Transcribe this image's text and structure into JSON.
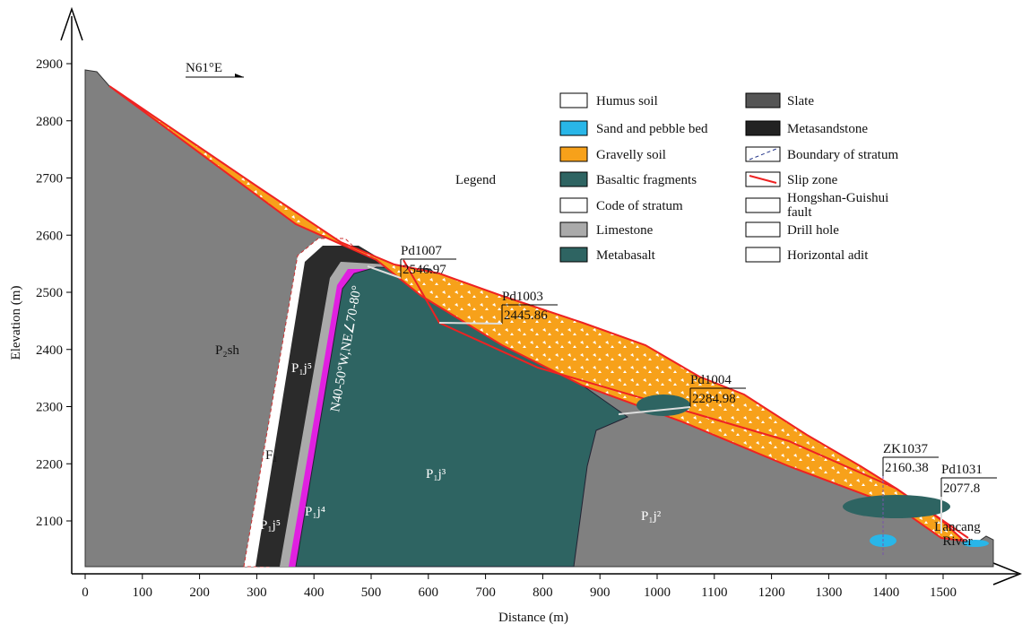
{
  "direction": "N61°E",
  "axes": {
    "x_label": "Distance (m)",
    "y_label": "Elevation (m)",
    "xticks": [
      0,
      100,
      200,
      300,
      400,
      500,
      600,
      700,
      800,
      900,
      1000,
      1100,
      1200,
      1300,
      1400,
      1500
    ],
    "yticks": [
      2100,
      2200,
      2300,
      2400,
      2500,
      2600,
      2700,
      2800,
      2900
    ]
  },
  "legend": {
    "title": "Legend",
    "left": [
      "Humus soil",
      "Sand and pebble bed",
      "Gravelly soil",
      "Basaltic fragments",
      "Code of stratum",
      "Limestone",
      "Metabasalt"
    ],
    "right": [
      "Slate",
      "Metasandstone",
      "Boundary of stratum",
      "Slip zone",
      [
        "Hongshan-Guishui",
        "fault"
      ],
      "Drill hole",
      "Horizontal adit"
    ]
  },
  "drill_points": [
    {
      "name": "Pd1007",
      "elevation": "2546.97"
    },
    {
      "name": "Pd1003",
      "elevation": "2445.86"
    },
    {
      "name": "Pd1004",
      "elevation": "2284.98"
    },
    {
      "name": "ZK1037",
      "elevation": "2160.38"
    },
    {
      "name": "Pd1031",
      "elevation": "2077.8"
    }
  ],
  "strata": [
    "P₂sh",
    "P₁j⁵",
    "P₁j⁵",
    "P₁j⁴",
    "P₁j³",
    "P₁j²"
  ],
  "fault": "F₁",
  "orientation": "N40-50°W,NE∠70-80°",
  "river": [
    "Lancang",
    "River"
  ]
}
